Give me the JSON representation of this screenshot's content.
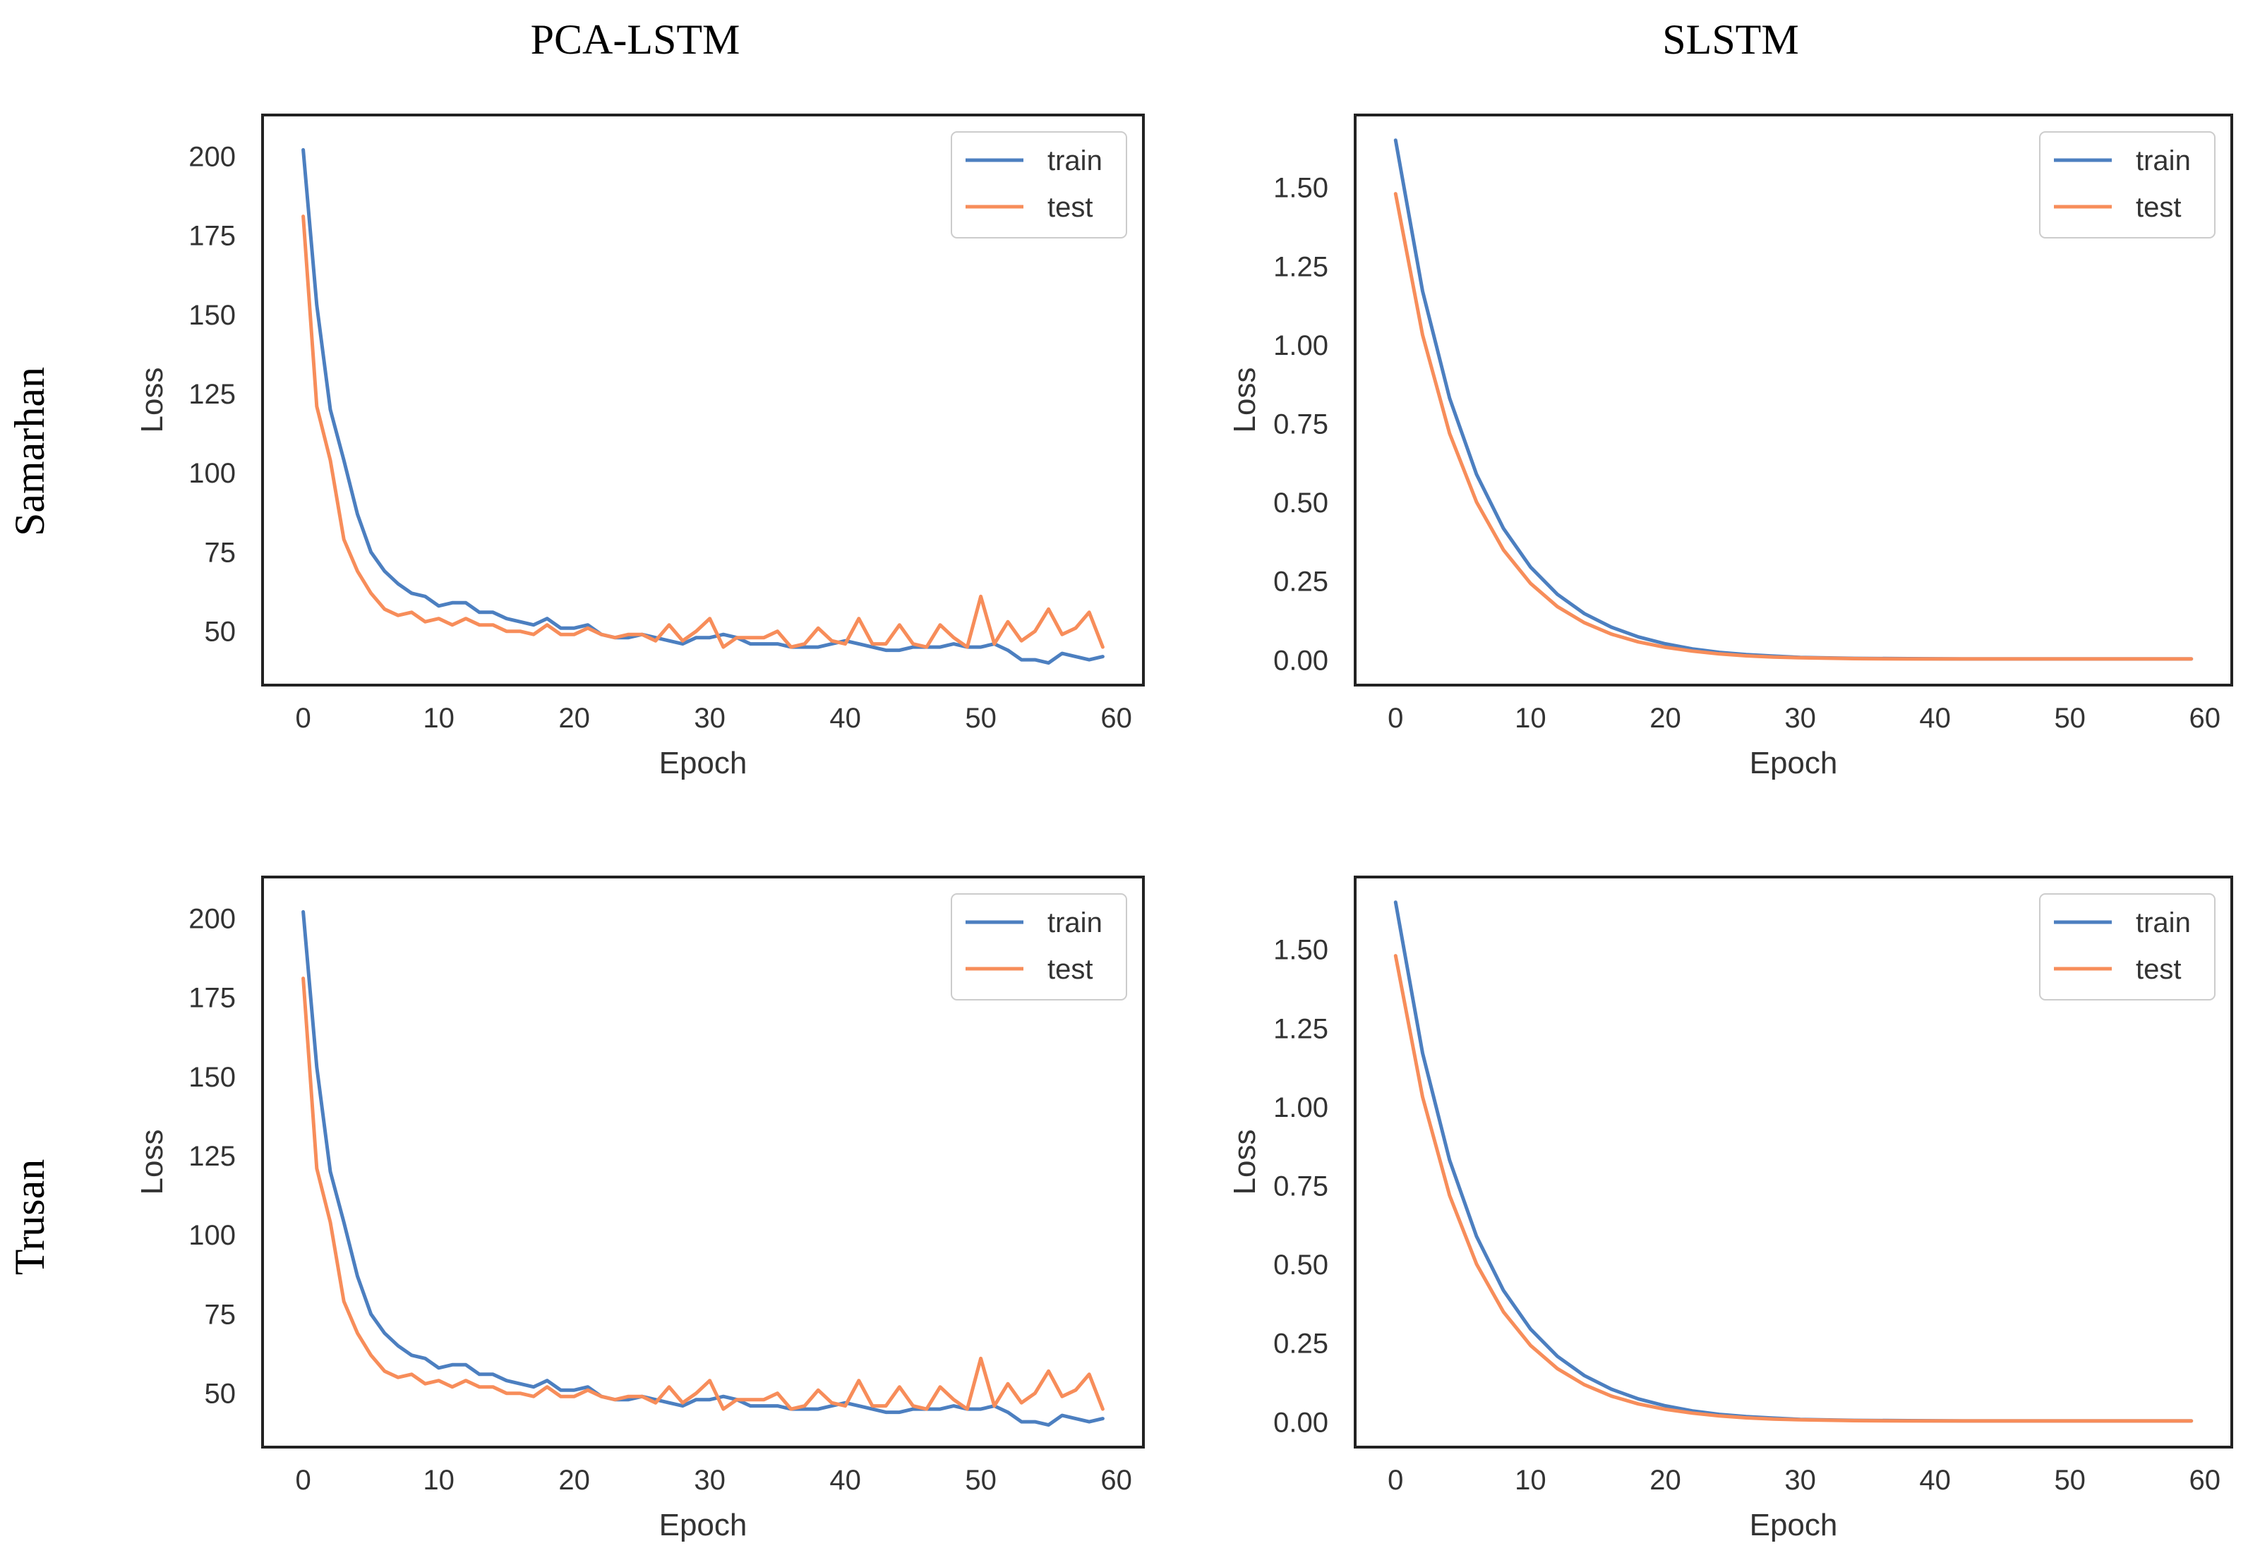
{
  "column_titles": [
    "PCA-LSTM",
    "SLSTM"
  ],
  "row_labels": [
    "Samarhan",
    "Trusan"
  ],
  "colors": {
    "train": "#4c7fc0",
    "test": "#f78d5a"
  },
  "chart_data": [
    {
      "type": "line",
      "model": "PCA-LSTM",
      "location": "Samarhan",
      "xlabel": "Epoch",
      "ylabel": "Loss",
      "xlim": [
        -3,
        62
      ],
      "ylim": [
        33,
        213
      ],
      "xticks": [
        0,
        10,
        20,
        30,
        40,
        50,
        60
      ],
      "yticks": [
        50,
        75,
        100,
        125,
        150,
        175,
        200
      ],
      "ytick_labels": [
        "50",
        "75",
        "100",
        "125",
        "150",
        "175",
        "200"
      ],
      "legend": {
        "location": "top-right",
        "entries": [
          "train",
          "test"
        ]
      },
      "series": [
        {
          "name": "train",
          "x": [
            0,
            1,
            2,
            3,
            4,
            5,
            6,
            7,
            8,
            9,
            10,
            11,
            12,
            13,
            14,
            15,
            16,
            17,
            18,
            19,
            20,
            21,
            22,
            23,
            24,
            25,
            26,
            27,
            28,
            29,
            30,
            31,
            32,
            33,
            34,
            35,
            36,
            37,
            38,
            39,
            40,
            41,
            42,
            43,
            44,
            45,
            46,
            47,
            48,
            49,
            50,
            51,
            52,
            53,
            54,
            55,
            56,
            57,
            58,
            59
          ],
          "values": [
            202,
            153,
            120,
            104,
            87,
            75,
            69,
            65,
            62,
            61,
            58,
            59,
            59,
            56,
            56,
            54,
            53,
            52,
            54,
            51,
            51,
            52,
            49,
            48,
            48,
            49,
            48,
            47,
            46,
            48,
            48,
            49,
            48,
            46,
            46,
            46,
            45,
            45,
            45,
            46,
            47,
            46,
            45,
            44,
            44,
            45,
            45,
            45,
            46,
            45,
            45,
            46,
            44,
            41,
            41,
            40,
            43,
            42,
            41,
            42
          ]
        },
        {
          "name": "test",
          "x": [
            0,
            1,
            2,
            3,
            4,
            5,
            6,
            7,
            8,
            9,
            10,
            11,
            12,
            13,
            14,
            15,
            16,
            17,
            18,
            19,
            20,
            21,
            22,
            23,
            24,
            25,
            26,
            27,
            28,
            29,
            30,
            31,
            32,
            33,
            34,
            35,
            36,
            37,
            38,
            39,
            40,
            41,
            42,
            43,
            44,
            45,
            46,
            47,
            48,
            49,
            50,
            51,
            52,
            53,
            54,
            55,
            56,
            57,
            58,
            59
          ],
          "values": [
            181,
            121,
            104,
            79,
            69,
            62,
            57,
            55,
            56,
            53,
            54,
            52,
            54,
            52,
            52,
            50,
            50,
            49,
            52,
            49,
            49,
            51,
            49,
            48,
            49,
            49,
            47,
            52,
            47,
            50,
            54,
            45,
            48,
            48,
            48,
            50,
            45,
            46,
            51,
            47,
            46,
            54,
            46,
            46,
            52,
            46,
            45,
            52,
            48,
            45,
            61,
            46,
            53,
            47,
            50,
            57,
            49,
            51,
            56,
            45
          ]
        }
      ]
    },
    {
      "type": "line",
      "model": "SLSTM",
      "location": "Samarhan",
      "xlabel": "Epoch",
      "ylabel": "Loss",
      "xlim": [
        -3,
        62
      ],
      "ylim": [
        -0.08,
        1.73
      ],
      "xticks": [
        0,
        10,
        20,
        30,
        40,
        50,
        60
      ],
      "yticks": [
        0,
        0.25,
        0.5,
        0.75,
        1,
        1.25,
        1.5
      ],
      "ytick_labels": [
        "0.00",
        "0.25",
        "0.50",
        "0.75",
        "1.00",
        "1.25",
        "1.50"
      ],
      "legend": {
        "location": "top-right",
        "entries": [
          "train",
          "test"
        ]
      },
      "series": [
        {
          "name": "train",
          "x": [
            0,
            2,
            4,
            6,
            8,
            10,
            12,
            14,
            16,
            18,
            20,
            22,
            24,
            26,
            28,
            30,
            34,
            38,
            42,
            46,
            50,
            54,
            59
          ],
          "values": [
            1.65,
            1.171,
            0.831,
            0.589,
            0.417,
            0.295,
            0.208,
            0.147,
            0.104,
            0.073,
            0.051,
            0.035,
            0.024,
            0.017,
            0.012,
            0.008,
            0.005,
            0.004,
            0.003,
            0.003,
            0.003,
            0.003,
            0.003
          ]
        },
        {
          "name": "test",
          "x": [
            0,
            2,
            4,
            6,
            8,
            10,
            12,
            14,
            16,
            18,
            20,
            22,
            24,
            26,
            28,
            30,
            34,
            38,
            42,
            46,
            50,
            54,
            59
          ],
          "values": [
            1.48,
            1.032,
            0.719,
            0.501,
            0.349,
            0.243,
            0.169,
            0.118,
            0.082,
            0.057,
            0.04,
            0.028,
            0.019,
            0.013,
            0.009,
            0.007,
            0.004,
            0.003,
            0.003,
            0.003,
            0.003,
            0.003,
            0.003
          ]
        }
      ]
    },
    {
      "type": "line",
      "model": "PCA-LSTM",
      "location": "Trusan",
      "xlabel": "Epoch",
      "ylabel": "Loss",
      "xlim": [
        -3,
        62
      ],
      "ylim": [
        33,
        213
      ],
      "xticks": [
        0,
        10,
        20,
        30,
        40,
        50,
        60
      ],
      "yticks": [
        50,
        75,
        100,
        125,
        150,
        175,
        200
      ],
      "ytick_labels": [
        "50",
        "75",
        "100",
        "125",
        "150",
        "175",
        "200"
      ],
      "legend": {
        "location": "top-right",
        "entries": [
          "train",
          "test"
        ]
      },
      "series": [
        {
          "name": "train",
          "x": [
            0,
            1,
            2,
            3,
            4,
            5,
            6,
            7,
            8,
            9,
            10,
            11,
            12,
            13,
            14,
            15,
            16,
            17,
            18,
            19,
            20,
            21,
            22,
            23,
            24,
            25,
            26,
            27,
            28,
            29,
            30,
            31,
            32,
            33,
            34,
            35,
            36,
            37,
            38,
            39,
            40,
            41,
            42,
            43,
            44,
            45,
            46,
            47,
            48,
            49,
            50,
            51,
            52,
            53,
            54,
            55,
            56,
            57,
            58,
            59
          ],
          "values": [
            202,
            153,
            120,
            104,
            87,
            75,
            69,
            65,
            62,
            61,
            58,
            59,
            59,
            56,
            56,
            54,
            53,
            52,
            54,
            51,
            51,
            52,
            49,
            48,
            48,
            49,
            48,
            47,
            46,
            48,
            48,
            49,
            48,
            46,
            46,
            46,
            45,
            45,
            45,
            46,
            47,
            46,
            45,
            44,
            44,
            45,
            45,
            45,
            46,
            45,
            45,
            46,
            44,
            41,
            41,
            40,
            43,
            42,
            41,
            42
          ]
        },
        {
          "name": "test",
          "x": [
            0,
            1,
            2,
            3,
            4,
            5,
            6,
            7,
            8,
            9,
            10,
            11,
            12,
            13,
            14,
            15,
            16,
            17,
            18,
            19,
            20,
            21,
            22,
            23,
            24,
            25,
            26,
            27,
            28,
            29,
            30,
            31,
            32,
            33,
            34,
            35,
            36,
            37,
            38,
            39,
            40,
            41,
            42,
            43,
            44,
            45,
            46,
            47,
            48,
            49,
            50,
            51,
            52,
            53,
            54,
            55,
            56,
            57,
            58,
            59
          ],
          "values": [
            181,
            121,
            104,
            79,
            69,
            62,
            57,
            55,
            56,
            53,
            54,
            52,
            54,
            52,
            52,
            50,
            50,
            49,
            52,
            49,
            49,
            51,
            49,
            48,
            49,
            49,
            47,
            52,
            47,
            50,
            54,
            45,
            48,
            48,
            48,
            50,
            45,
            46,
            51,
            47,
            46,
            54,
            46,
            46,
            52,
            46,
            45,
            52,
            48,
            45,
            61,
            46,
            53,
            47,
            50,
            57,
            49,
            51,
            56,
            45
          ]
        }
      ]
    },
    {
      "type": "line",
      "model": "SLSTM",
      "location": "Trusan",
      "xlabel": "Epoch",
      "ylabel": "Loss",
      "xlim": [
        -3,
        62
      ],
      "ylim": [
        -0.08,
        1.73
      ],
      "xticks": [
        0,
        10,
        20,
        30,
        40,
        50,
        60
      ],
      "yticks": [
        0,
        0.25,
        0.5,
        0.75,
        1,
        1.25,
        1.5
      ],
      "ytick_labels": [
        "0.00",
        "0.25",
        "0.50",
        "0.75",
        "1.00",
        "1.25",
        "1.50"
      ],
      "legend": {
        "location": "top-right",
        "entries": [
          "train",
          "test"
        ]
      },
      "series": [
        {
          "name": "train",
          "x": [
            0,
            2,
            4,
            6,
            8,
            10,
            12,
            14,
            16,
            18,
            20,
            22,
            24,
            26,
            28,
            30,
            34,
            38,
            42,
            46,
            50,
            54,
            59
          ],
          "values": [
            1.65,
            1.171,
            0.831,
            0.589,
            0.417,
            0.295,
            0.208,
            0.147,
            0.104,
            0.073,
            0.051,
            0.035,
            0.024,
            0.017,
            0.012,
            0.008,
            0.005,
            0.004,
            0.003,
            0.003,
            0.003,
            0.003,
            0.003
          ]
        },
        {
          "name": "test",
          "x": [
            0,
            2,
            4,
            6,
            8,
            10,
            12,
            14,
            16,
            18,
            20,
            22,
            24,
            26,
            28,
            30,
            34,
            38,
            42,
            46,
            50,
            54,
            59
          ],
          "values": [
            1.48,
            1.032,
            0.719,
            0.501,
            0.349,
            0.243,
            0.169,
            0.118,
            0.082,
            0.057,
            0.04,
            0.028,
            0.019,
            0.013,
            0.009,
            0.007,
            0.004,
            0.003,
            0.003,
            0.003,
            0.003,
            0.003,
            0.003
          ]
        }
      ]
    }
  ]
}
